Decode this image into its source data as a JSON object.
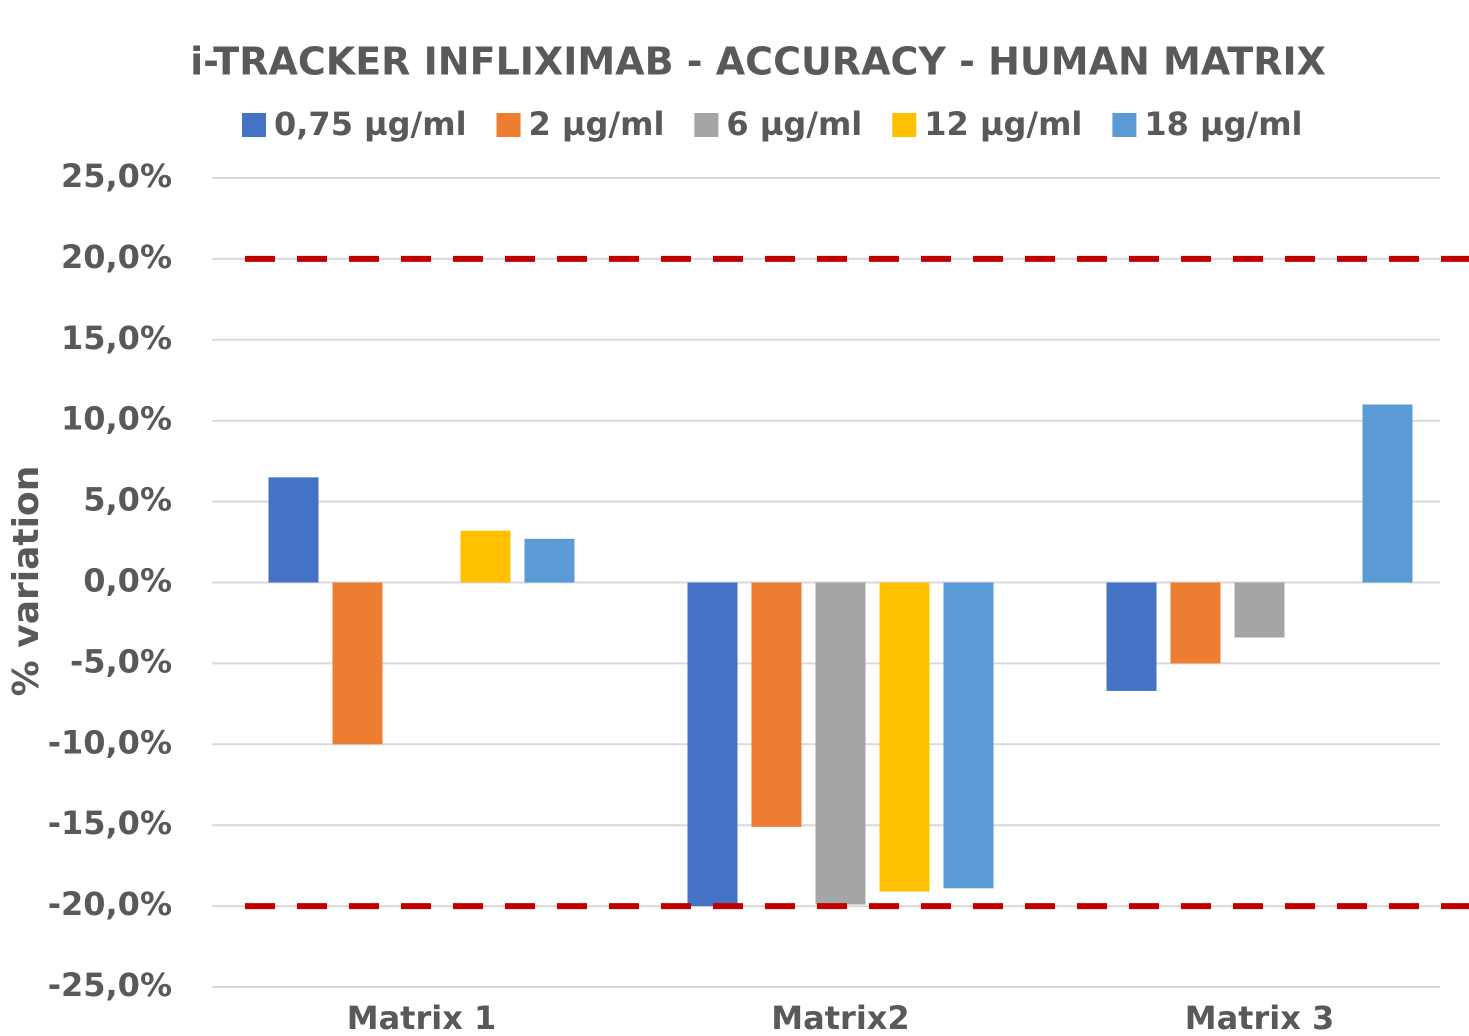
{
  "chart_data": {
    "type": "bar",
    "title": "i-TRACKER INFLIXIMAB - ACCURACY - HUMAN MATRIX",
    "y_label": "% variation",
    "categories": [
      "Matrix 1",
      "Matrix2",
      "Matrix 3"
    ],
    "series": [
      {
        "name": "0,75 µg/ml",
        "color": "#4472c4",
        "values": [
          6.5,
          -20.0,
          -6.7
        ]
      },
      {
        "name": "2 µg/ml",
        "color": "#ed7d31",
        "values": [
          -10.0,
          -15.1,
          -5.0
        ]
      },
      {
        "name": "6 µg/ml",
        "color": "#a5a5a5",
        "values": [
          null,
          -19.9,
          -3.4
        ]
      },
      {
        "name": "12 µg/ml",
        "color": "#ffc000",
        "values": [
          3.2,
          -19.1,
          null
        ]
      },
      {
        "name": "18 µg/ml",
        "color": "#5b9bd5",
        "values": [
          2.7,
          -18.9,
          11.0
        ]
      }
    ],
    "ylim": [
      -25,
      25
    ],
    "yticks": [
      {
        "value": -25,
        "label": "-25,0%"
      },
      {
        "value": -20,
        "label": "-20,0%"
      },
      {
        "value": -15,
        "label": "-15,0%"
      },
      {
        "value": -10,
        "label": "-10,0%"
      },
      {
        "value": -5,
        "label": "-5,0%"
      },
      {
        "value": 0,
        "label": "0,0%"
      },
      {
        "value": 5,
        "label": "5,0%"
      },
      {
        "value": 10,
        "label": "10,0%"
      },
      {
        "value": 15,
        "label": "15,0%"
      },
      {
        "value": 20,
        "label": "20,0%"
      },
      {
        "value": 25,
        "label": "25,0%"
      }
    ],
    "reference_lines": [
      20,
      -20
    ],
    "reference_color": "#c00000",
    "grid": true,
    "legend": "top"
  }
}
